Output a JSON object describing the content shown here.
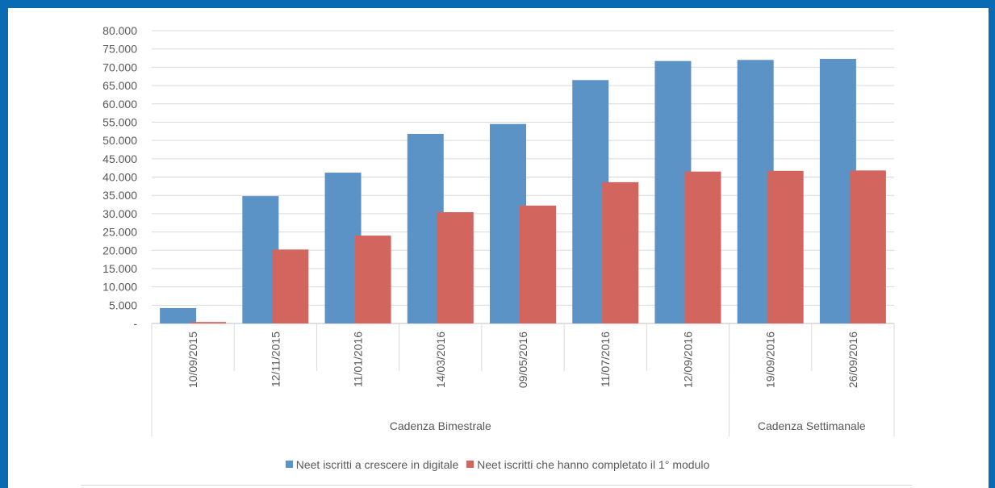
{
  "chart_data": {
    "type": "bar",
    "categories": [
      "10/09/2015",
      "12/11/2015",
      "11/01/2016",
      "14/03/2016",
      "09/05/2016",
      "11/07/2016",
      "12/09/2016",
      "19/09/2016",
      "26/09/2016"
    ],
    "groups": [
      {
        "label": "Cadenza Bimestrale",
        "count": 7
      },
      {
        "label": "Cadenza Settimanale",
        "count": 2
      }
    ],
    "series": [
      {
        "name": "Neet iscritti a crescere in digitale",
        "color": "#5b93c7",
        "values": [
          4200,
          34800,
          41200,
          51800,
          54500,
          66500,
          71700,
          72000,
          72300
        ]
      },
      {
        "name": "Neet iscritti che hanno completato il 1° modulo",
        "color": "#d2665e",
        "values": [
          400,
          20200,
          24000,
          30400,
          32200,
          38600,
          41500,
          41700,
          41800
        ]
      }
    ],
    "yticks": [
      "-",
      "5.000",
      "10.000",
      "15.000",
      "20.000",
      "25.000",
      "30.000",
      "35.000",
      "40.000",
      "45.000",
      "50.000",
      "55.000",
      "60.000",
      "65.000",
      "70.000",
      "75.000",
      "80.000"
    ],
    "ylim": [
      0,
      80000
    ],
    "grid": true,
    "legend_position": "bottom"
  }
}
